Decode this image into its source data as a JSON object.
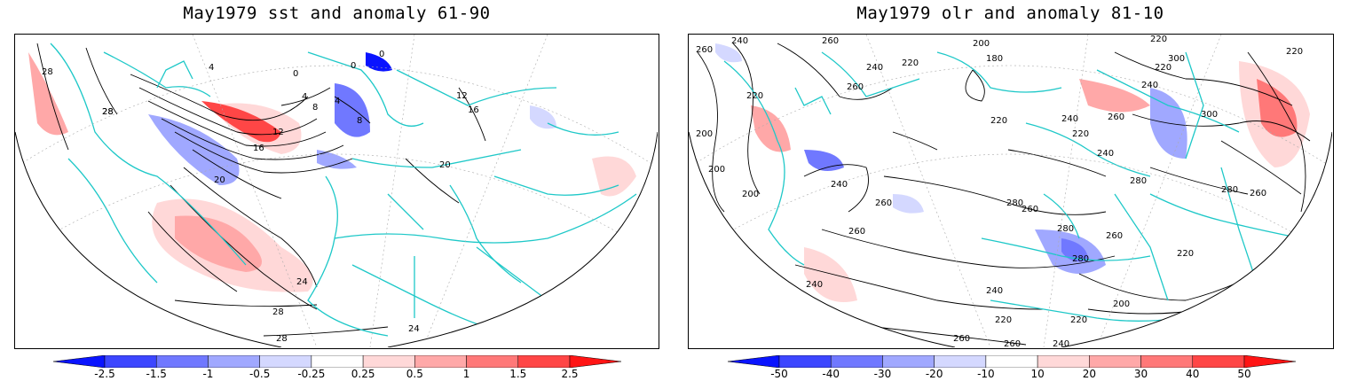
{
  "panels": [
    {
      "title": "May1979 sst and anomaly 61-90",
      "contour_labels": [
        "28",
        "28",
        "4",
        "0",
        "0",
        "0",
        "4",
        "8",
        "4",
        "8",
        "12",
        "12",
        "16",
        "16",
        "20",
        "20",
        "24",
        "24",
        "28",
        "28",
        "28"
      ],
      "colorbar": {
        "colors": [
          "#0a14ff",
          "#3c46ff",
          "#7078ff",
          "#a0a8ff",
          "#d4d8ff",
          "#ffffff",
          "#ffd8d8",
          "#ffa8a8",
          "#ff7878",
          "#ff4646",
          "#ff1414"
        ],
        "labels": [
          "-2.5",
          "-1.5",
          "-1",
          "-0.5",
          "-0.25",
          "0.25",
          "0.5",
          "1",
          "1.5",
          "2.5"
        ]
      }
    },
    {
      "title": "May1979 olr and anomaly 81-10",
      "contour_labels": [
        "260",
        "240",
        "200",
        "260",
        "220",
        "180",
        "200",
        "220",
        "300",
        "220",
        "220",
        "240",
        "240",
        "260",
        "260",
        "300",
        "240",
        "220",
        "220",
        "220",
        "200",
        "240",
        "240",
        "260",
        "200",
        "260",
        "280",
        "280",
        "260",
        "280",
        "280",
        "260",
        "260",
        "240",
        "280",
        "220",
        "240",
        "200",
        "220",
        "220",
        "260",
        "260",
        "240"
      ],
      "colorbar": {
        "colors": [
          "#0a14ff",
          "#3c46ff",
          "#7078ff",
          "#a0a8ff",
          "#d4d8ff",
          "#ffffff",
          "#ffd8d8",
          "#ffa8a8",
          "#ff7878",
          "#ff4646",
          "#ff1414"
        ],
        "labels": [
          "-50",
          "-40",
          "-30",
          "-20",
          "-10",
          "10",
          "20",
          "30",
          "40",
          "50"
        ]
      }
    }
  ]
}
